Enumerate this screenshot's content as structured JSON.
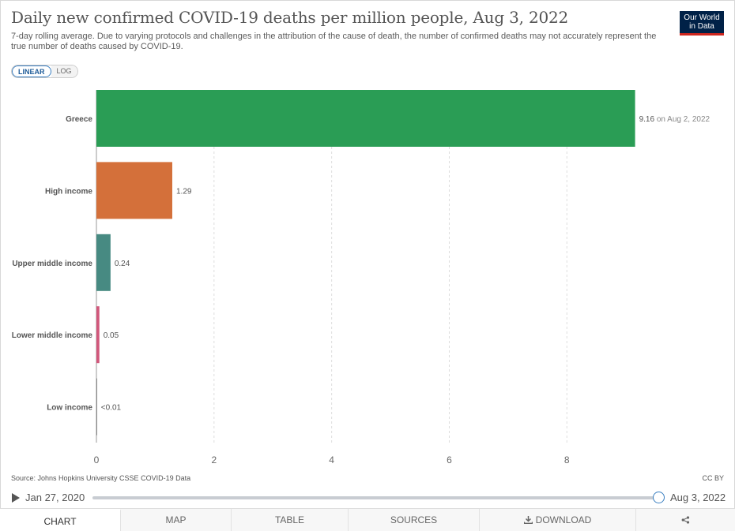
{
  "header": {
    "title": "Daily new confirmed COVID-19 deaths per million people, Aug 3, 2022",
    "subtitle": "7-day rolling average. Due to varying protocols and challenges in the attribution of the cause of death, the number of confirmed deaths may not accurately represent the true number of deaths caused by COVID-19.",
    "logo_line1": "Our World",
    "logo_line2": "in Data"
  },
  "scale_toggle": {
    "linear": "LINEAR",
    "log": "LOG",
    "selected": "LINEAR"
  },
  "chart_data": {
    "type": "bar",
    "orientation": "horizontal",
    "categories": [
      "Greece",
      "High income",
      "Upper middle income",
      "Lower middle income",
      "Low income"
    ],
    "values": [
      9.16,
      1.29,
      0.24,
      0.05,
      0.003
    ],
    "value_labels": [
      "9.16",
      "1.29",
      "0.24",
      "0.05",
      "<0.01"
    ],
    "value_label_suffixes": [
      " on Aug 2, 2022",
      "",
      "",
      "",
      ""
    ],
    "colors": [
      "#2a9d55",
      "#d4703a",
      "#478a82",
      "#d1577b",
      "#6e6e6e"
    ],
    "xlim": [
      0,
      9.3
    ],
    "xticks": [
      0,
      2,
      4,
      6,
      8
    ],
    "grid": true
  },
  "footer": {
    "source": "Source: Johns Hopkins University CSSE COVID-19 Data",
    "license": "CC BY"
  },
  "timeline": {
    "start": "Jan 27, 2020",
    "end": "Aug 3, 2022"
  },
  "tabs": [
    {
      "label": "CHART",
      "active": true
    },
    {
      "label": "MAP",
      "active": false
    },
    {
      "label": "TABLE",
      "active": false
    },
    {
      "label": "SOURCES",
      "active": false
    },
    {
      "label": "DOWNLOAD",
      "active": false
    },
    {
      "label": "",
      "icon": "share-icon",
      "active": false
    }
  ]
}
